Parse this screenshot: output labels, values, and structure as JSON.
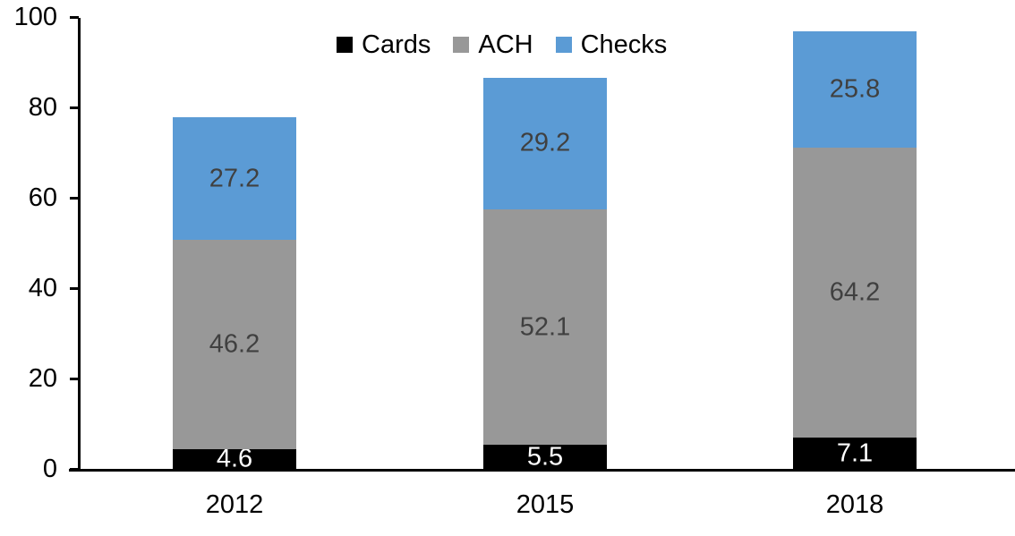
{
  "chart_data": {
    "type": "bar",
    "stacked": true,
    "title": "",
    "xlabel": "",
    "ylabel": "",
    "categories": [
      "2012",
      "2015",
      "2018"
    ],
    "series": [
      {
        "name": "Cards",
        "color": "#000000",
        "label_color": "#ffffff",
        "values": [
          4.6,
          5.5,
          7.1
        ]
      },
      {
        "name": "ACH",
        "color": "#989898",
        "label_color": "#404040",
        "values": [
          46.2,
          52.1,
          64.2
        ]
      },
      {
        "name": "Checks",
        "color": "#5b9bd5",
        "label_color": "#404040",
        "values": [
          27.2,
          29.2,
          25.8
        ]
      }
    ],
    "ylim": [
      0,
      100
    ],
    "yticks": [
      0,
      20,
      40,
      60,
      80,
      100
    ],
    "grid": false,
    "legend_position": "top-center",
    "axis_color": "#000000"
  }
}
